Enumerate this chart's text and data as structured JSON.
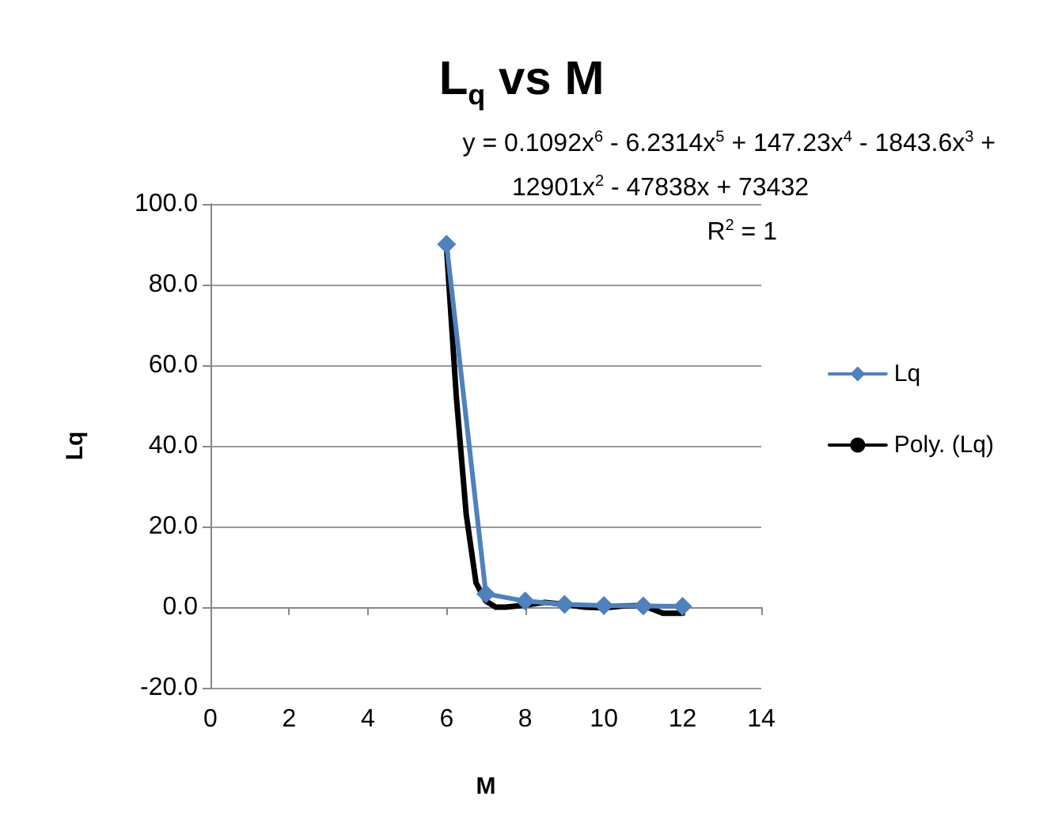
{
  "chart_data": {
    "type": "line",
    "title": "L$_{q}$ vs M",
    "xlabel": "M",
    "ylabel": "Lq",
    "xlim": [
      0,
      14
    ],
    "xticks": [
      0,
      2,
      4,
      6,
      8,
      10,
      12,
      14
    ],
    "ylim": [
      -20,
      100
    ],
    "yticks": [
      {
        "value": -20,
        "label": "-20.0"
      },
      {
        "value": 0,
        "label": "0.0"
      },
      {
        "value": 20,
        "label": "20.0"
      },
      {
        "value": 40,
        "label": "40.0"
      },
      {
        "value": 60,
        "label": "60.0"
      },
      {
        "value": 80,
        "label": "80.0"
      },
      {
        "value": 100,
        "label": "100.0"
      }
    ],
    "grid": "y",
    "legend": "right",
    "line_style": "solid",
    "annotations": [
      "y = 0.1092x$^{6}$ - 6.2314x$^{5}$ + 147.23x$^{4}$ - 1843.6x$^{3}$ +",
      "12901x$^{2}$ - 47838x + 73432",
      "R$^{2}$ = 1"
    ],
    "series": [
      {
        "name": "Lq",
        "color": "#4f81bd",
        "marker": "diamond",
        "x": [
          6,
          7,
          8,
          9,
          10,
          11,
          12
        ],
        "values": [
          90,
          3.3,
          1.5,
          0.7,
          0.4,
          0.3,
          0.2
        ]
      },
      {
        "name": "Poly. (Lq)",
        "color": "#000000",
        "marker": "none",
        "x": [
          6,
          6.25,
          6.5,
          6.75,
          7,
          7.25,
          7.5,
          8,
          8.5,
          9,
          9.5,
          10,
          10.5,
          11,
          11.5,
          12
        ],
        "values": [
          89,
          52,
          23,
          6,
          1.5,
          0,
          0,
          0.5,
          1.2,
          0.7,
          0,
          -0.2,
          0.3,
          0.4,
          -1.5,
          -1.5
        ]
      }
    ]
  }
}
